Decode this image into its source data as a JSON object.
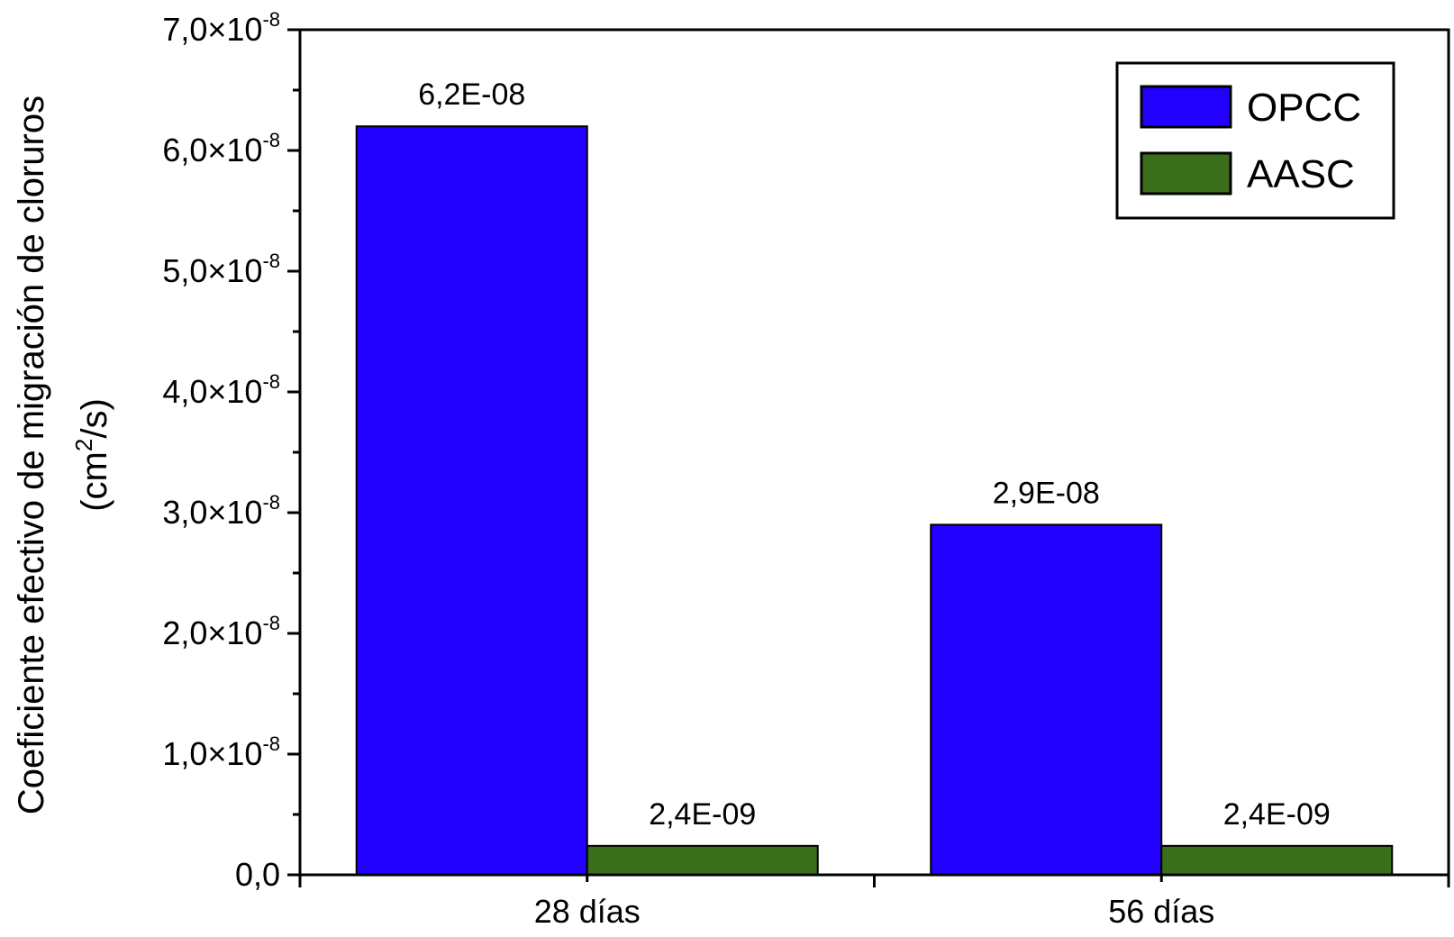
{
  "chart_data": {
    "type": "bar",
    "categories": [
      "28 días",
      "56 días"
    ],
    "series": [
      {
        "name": "OPCC",
        "color": "#2200ff",
        "values": [
          6.2e-08,
          2.9e-08
        ],
        "labels": [
          "6,2E-08",
          "2,9E-08"
        ]
      },
      {
        "name": "AASC",
        "color": "#3a6e1a",
        "values": [
          2.4e-09,
          2.4e-09
        ],
        "labels": [
          "2,4E-09",
          "2,4E-09"
        ]
      }
    ],
    "ylim": [
      0,
      7e-08
    ],
    "yticks": [
      {
        "value": 0,
        "mantissa": "0,0",
        "times": "",
        "exp": ""
      },
      {
        "value": 1e-08,
        "mantissa": "1,0",
        "times": "×10",
        "exp": "-8"
      },
      {
        "value": 2e-08,
        "mantissa": "2,0",
        "times": "×10",
        "exp": "-8"
      },
      {
        "value": 3e-08,
        "mantissa": "3,0",
        "times": "×10",
        "exp": "-8"
      },
      {
        "value": 4e-08,
        "mantissa": "4,0",
        "times": "×10",
        "exp": "-8"
      },
      {
        "value": 5e-08,
        "mantissa": "5,0",
        "times": "×10",
        "exp": "-8"
      },
      {
        "value": 6e-08,
        "mantissa": "6,0",
        "times": "×10",
        "exp": "-8"
      },
      {
        "value": 7e-08,
        "mantissa": "7,0",
        "times": "×10",
        "exp": "-8"
      }
    ],
    "ylabel": {
      "line1": "Coeficiente efectivo de migración de cloruros",
      "line2_prefix": "(cm",
      "line2_sup": "2",
      "line2_suffix": "/s)"
    },
    "xlabel": "",
    "legend_position": "top-right",
    "grid": false
  }
}
